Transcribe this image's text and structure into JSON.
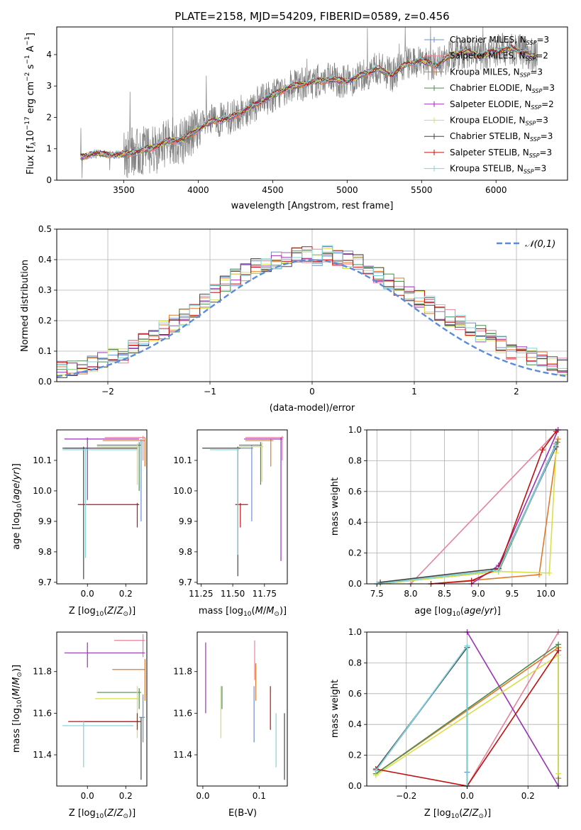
{
  "figure": {
    "suptitle": "PLATE=2158, MJD=54209, FIBERID=0589, z=0.456"
  },
  "chart_data": [
    {
      "id": "spectrum",
      "type": "line",
      "xlabel": "wavelength [Angstrom, rest frame]",
      "ylabel": "Flux [f_λ 10^-17 erg cm^-2 s^-1 A^-1]",
      "xlim": [
        3050,
        6480
      ],
      "ylim": [
        0,
        4.88
      ],
      "xticks": [
        3500,
        4000,
        4500,
        5000,
        5500,
        6000
      ],
      "yticks": [
        0,
        1,
        2,
        3,
        4
      ],
      "observed_color": "#808080",
      "model_anchors": {
        "x": [
          3210,
          3300,
          3400,
          3500,
          3600,
          3700,
          3800,
          3900,
          4000,
          4100,
          4200,
          4300,
          4400,
          4500,
          4600,
          4700,
          4800,
          4900,
          5000,
          5100,
          5200,
          5300,
          5400,
          5500,
          5600,
          5700,
          5800,
          5900,
          6000,
          6100,
          6200,
          6280
        ],
        "y": [
          0.72,
          0.85,
          0.82,
          0.82,
          0.92,
          1.05,
          1.25,
          1.3,
          1.62,
          1.9,
          1.95,
          2.2,
          2.45,
          2.7,
          2.95,
          3.05,
          3.15,
          3.2,
          3.15,
          3.35,
          3.55,
          3.35,
          3.7,
          3.8,
          3.65,
          4.0,
          4.1,
          3.95,
          4.1,
          4.2,
          4.05,
          3.9
        ]
      },
      "legend_position": "upper right",
      "legend": [
        {
          "label": "Chabrier MILES, N_SSP=3",
          "color": "#6b8fd4"
        },
        {
          "label": "Salpeter MILES, N_SSP=2",
          "color": "#e8829a"
        },
        {
          "label": "Kroupa MILES, N_SSP=3",
          "color": "#e07a2a"
        },
        {
          "label": "Chabrier ELODIE, N_SSP=3",
          "color": "#4f8a4f"
        },
        {
          "label": "Salpeter ELODIE, N_SSP=2",
          "color": "#9b30b5"
        },
        {
          "label": "Kroupa ELODIE, N_SSP=3",
          "color": "#d8e04a"
        },
        {
          "label": "Chabrier STELIB, N_SSP=3",
          "color": "#444444"
        },
        {
          "label": "Salpeter STELIB, N_SSP=3",
          "color": "#c01010"
        },
        {
          "label": "Kroupa STELIB, N_SSP=3",
          "color": "#7fd4d8"
        }
      ]
    },
    {
      "id": "residuals",
      "type": "step",
      "xlabel": "(data-model)/error",
      "ylabel": "Normed distribution",
      "xlim": [
        -2.5,
        2.5
      ],
      "ylim": [
        0,
        0.5
      ],
      "xticks": [
        -2,
        -1,
        0,
        1,
        2
      ],
      "yticks": [
        0.0,
        0.1,
        0.2,
        0.3,
        0.4,
        0.5
      ],
      "grid": true,
      "bin_width": 0.1,
      "reference": {
        "label": "𝒩(0,1)",
        "color": "#5b8bd9",
        "style": "dashed"
      },
      "envelope": [
        0.02,
        0.02,
        0.03,
        0.03,
        0.03,
        0.04,
        0.04,
        0.05,
        0.06,
        0.07,
        0.08,
        0.09,
        0.11,
        0.13,
        0.15,
        0.17,
        0.19,
        0.21,
        0.24,
        0.26,
        0.29,
        0.32,
        0.34,
        0.36,
        0.38,
        0.39,
        0.4,
        0.4,
        0.41,
        0.42,
        0.41,
        0.42,
        0.41,
        0.4,
        0.39,
        0.37,
        0.35,
        0.33,
        0.31,
        0.29,
        0.27,
        0.25,
        0.23,
        0.21,
        0.19,
        0.17,
        0.16,
        0.14,
        0.12,
        0.1,
        0.09,
        0.08,
        0.07,
        0.06,
        0.05,
        0.05,
        0.04,
        0.04,
        0.03,
        0.03
      ]
    },
    {
      "id": "age_vs_Z",
      "type": "errorbar",
      "xlabel": "Z [log10(Z/Z⊙)]",
      "ylabel": "age [log10(age/yr)]",
      "xlim": [
        -0.16,
        0.31
      ],
      "ylim": [
        9.695,
        10.2
      ],
      "xticks": [
        "0.0",
        "0.2"
      ],
      "xtick_values": [
        0,
        0.2
      ],
      "yticks": [
        "9.7",
        "9.8",
        "9.9",
        "10.0",
        "10.1"
      ],
      "ytick_values": [
        9.7,
        9.8,
        9.9,
        10.0,
        10.1
      ],
      "points": [
        {
          "c": 0,
          "x": 0.28,
          "xe": [
            -0.12,
            0.0
          ],
          "y": 10.14,
          "ye": [
            9.9,
            10.17
          ]
        },
        {
          "c": 1,
          "x": 0.29,
          "xe": [
            0.09,
            0.3
          ],
          "y": 10.175,
          "ye": [
            10.1,
            10.18
          ]
        },
        {
          "c": 2,
          "x": 0.3,
          "xe": [
            0.08,
            0.3
          ],
          "y": 10.165,
          "ye": [
            10.08,
            10.175
          ]
        },
        {
          "c": 3,
          "x": 0.27,
          "xe": [
            0.05,
            0.28
          ],
          "y": 10.15,
          "ye": [
            10.0,
            10.16
          ]
        },
        {
          "c": 4,
          "x": 0.0,
          "xe": [
            -0.12,
            0.27
          ],
          "y": 10.17,
          "ye": [
            9.97,
            10.175
          ]
        },
        {
          "c": 5,
          "x": 0.26,
          "xe": [
            0.05,
            0.27
          ],
          "y": 10.145,
          "ye": [
            10.02,
            10.155
          ]
        },
        {
          "c": 6,
          "x": -0.02,
          "xe": [
            -0.13,
            0.26
          ],
          "y": 10.14,
          "ye": [
            9.71,
            10.145
          ]
        },
        {
          "c": 7,
          "x": 0.26,
          "xe": [
            -0.05,
            0.27
          ],
          "y": 9.955,
          "ye": [
            9.88,
            9.96
          ]
        },
        {
          "c": 8,
          "x": -0.01,
          "xe": [
            -0.13,
            0.26
          ],
          "y": 10.135,
          "ye": [
            9.78,
            10.14
          ]
        }
      ]
    },
    {
      "id": "age_vs_mass",
      "type": "errorbar",
      "xlabel": "mass [log10(M/M⊙)]",
      "ylabel": "",
      "xlim": [
        11.22,
        11.93
      ],
      "ylim": [
        9.695,
        10.2
      ],
      "xticks": [
        "11.25",
        "11.50",
        "11.75"
      ],
      "xtick_values": [
        11.25,
        11.5,
        11.75
      ],
      "yticks": [
        "9.7",
        "9.8",
        "9.9",
        "10.0",
        "10.1"
      ],
      "ytick_values": [
        9.7,
        9.8,
        9.9,
        10.0,
        10.1
      ],
      "points": [
        {
          "c": 0,
          "x": 11.65,
          "xe": [
            11.55,
            11.66
          ],
          "y": 10.14,
          "ye": [
            9.9,
            10.15
          ]
        },
        {
          "c": 1,
          "x": 11.89,
          "xe": [
            11.6,
            11.9
          ],
          "y": 10.175,
          "ye": [
            10.1,
            10.18
          ]
        },
        {
          "c": 2,
          "x": 11.8,
          "xe": [
            11.6,
            11.82
          ],
          "y": 10.165,
          "ye": [
            10.08,
            10.17
          ]
        },
        {
          "c": 3,
          "x": 11.72,
          "xe": [
            11.55,
            11.73
          ],
          "y": 10.15,
          "ye": [
            10.02,
            10.16
          ]
        },
        {
          "c": 4,
          "x": 11.88,
          "xe": [
            11.59,
            11.89
          ],
          "y": 10.17,
          "ye": [
            9.77,
            10.175
          ]
        },
        {
          "c": 5,
          "x": 11.73,
          "xe": [
            11.55,
            11.74
          ],
          "y": 10.145,
          "ye": [
            10.03,
            10.16
          ]
        },
        {
          "c": 6,
          "x": 11.54,
          "xe": [
            11.26,
            11.56
          ],
          "y": 10.14,
          "ye": [
            9.72,
            10.145
          ]
        },
        {
          "c": 7,
          "x": 11.56,
          "xe": [
            11.52,
            11.62
          ],
          "y": 9.955,
          "ye": [
            9.88,
            9.96
          ]
        },
        {
          "c": 8,
          "x": 11.54,
          "xe": [
            11.32,
            11.55
          ],
          "y": 10.135,
          "ye": [
            9.79,
            10.14
          ]
        }
      ]
    },
    {
      "id": "mass_weight_vs_age",
      "type": "line",
      "xlabel": "age [log10(age/yr)]",
      "ylabel": "mass weight",
      "xlim": [
        7.35,
        10.32
      ],
      "ylim": [
        0,
        1
      ],
      "xticks": [
        "7.5",
        "8.0",
        "8.5",
        "9.0",
        "9.5",
        "10.0"
      ],
      "xtick_values": [
        7.5,
        8.0,
        8.5,
        9.0,
        9.5,
        10.0
      ],
      "yticks": [
        "0.0",
        "0.2",
        "0.4",
        "0.6",
        "0.8",
        "1.0"
      ],
      "ytick_values": [
        0,
        0.2,
        0.4,
        0.6,
        0.8,
        1.0
      ],
      "grid": true,
      "series": [
        {
          "c": 0,
          "x": [
            7.5,
            9.3,
            10.15
          ],
          "y": [
            0.0,
            0.09,
            0.91
          ]
        },
        {
          "c": 1,
          "x": [
            8.0,
            10.18
          ],
          "y": [
            0.0,
            1.0
          ]
        },
        {
          "c": 2,
          "x": [
            8.3,
            9.9,
            10.18
          ],
          "y": [
            0.0,
            0.06,
            0.94
          ]
        },
        {
          "c": 3,
          "x": [
            7.55,
            9.3,
            10.17
          ],
          "y": [
            0.0,
            0.08,
            0.92
          ]
        },
        {
          "c": 4,
          "x": [
            8.9,
            9.3,
            10.18
          ],
          "y": [
            0.0,
            0.12,
            1.0
          ]
        },
        {
          "c": 5,
          "x": [
            7.55,
            9.3,
            10.05,
            10.15
          ],
          "y": [
            0.0,
            0.08,
            0.07,
            0.85
          ]
        },
        {
          "c": 6,
          "x": [
            7.55,
            9.3,
            10.15
          ],
          "y": [
            0.01,
            0.1,
            0.89
          ]
        },
        {
          "c": 7,
          "x": [
            8.3,
            8.9,
            9.3,
            9.95,
            10.15
          ],
          "y": [
            0.0,
            0.02,
            0.1,
            0.87,
            0.99
          ]
        },
        {
          "c": 8,
          "x": [
            7.5,
            9.3,
            10.15
          ],
          "y": [
            0.0,
            0.09,
            0.9
          ]
        }
      ]
    },
    {
      "id": "mass_vs_Z",
      "type": "errorbar",
      "xlabel": "Z [log10(Z/Z⊙)]",
      "ylabel": "mass [log10(M/M⊙)]",
      "xlim": [
        -0.16,
        0.31
      ],
      "ylim": [
        11.25,
        11.99
      ],
      "xticks": [
        "0.0",
        "0.2"
      ],
      "xtick_values": [
        0,
        0.2
      ],
      "yticks": [
        "11.4",
        "11.6",
        "11.8"
      ],
      "ytick_values": [
        11.4,
        11.6,
        11.8
      ],
      "points": [
        {
          "c": 0,
          "x": 0.29,
          "xe": [
            0.27,
            0.3
          ],
          "y": 11.58,
          "ye": [
            11.46,
            11.69
          ]
        },
        {
          "c": 1,
          "x": 0.29,
          "xe": [
            0.14,
            0.3
          ],
          "y": 11.95,
          "ye": [
            11.87,
            11.98
          ]
        },
        {
          "c": 2,
          "x": 0.3,
          "xe": [
            0.13,
            0.3
          ],
          "y": 11.81,
          "ye": [
            11.66,
            11.86
          ]
        },
        {
          "c": 3,
          "x": 0.27,
          "xe": [
            0.05,
            0.28
          ],
          "y": 11.7,
          "ye": [
            11.62,
            11.72
          ]
        },
        {
          "c": 4,
          "x": 0.0,
          "xe": [
            -0.12,
            0.3
          ],
          "y": 11.89,
          "ye": [
            11.82,
            11.94
          ]
        },
        {
          "c": 5,
          "x": 0.26,
          "xe": [
            0.04,
            0.27
          ],
          "y": 11.67,
          "ye": [
            11.48,
            11.73
          ]
        },
        {
          "c": 6,
          "x": 0.28,
          "xe": [
            -0.02,
            0.28
          ],
          "y": 11.56,
          "ye": [
            11.28,
            11.58
          ]
        },
        {
          "c": 7,
          "x": 0.26,
          "xe": [
            -0.1,
            0.27
          ],
          "y": 11.56,
          "ye": [
            11.52,
            11.6
          ]
        },
        {
          "c": 8,
          "x": -0.02,
          "xe": [
            -0.13,
            0.24
          ],
          "y": 11.54,
          "ye": [
            11.34,
            11.56
          ]
        }
      ]
    },
    {
      "id": "mass_vs_ebv",
      "type": "errorbar",
      "xlabel": "E(B-V)",
      "ylabel": "",
      "xlim": [
        -0.01,
        0.15
      ],
      "ylim": [
        11.25,
        11.99
      ],
      "xticks": [
        "0.0",
        "0.1"
      ],
      "xtick_values": [
        0,
        0.1
      ],
      "yticks": [
        "11.4",
        "11.6",
        "11.8"
      ],
      "ytick_values": [
        11.4,
        11.6,
        11.8
      ],
      "points": [
        {
          "c": 0,
          "x": 0.091,
          "xe": [
            0.091,
            0.091
          ],
          "y": 11.6,
          "ye": [
            11.46,
            11.73
          ]
        },
        {
          "c": 1,
          "x": 0.092,
          "xe": [
            0.092,
            0.092
          ],
          "y": 11.9,
          "ye": [
            11.76,
            11.95
          ]
        },
        {
          "c": 2,
          "x": 0.094,
          "xe": [
            0.094,
            0.094
          ],
          "y": 11.82,
          "ye": [
            11.66,
            11.84
          ]
        },
        {
          "c": 3,
          "x": 0.034,
          "xe": [
            0.034,
            0.034
          ],
          "y": 11.7,
          "ye": [
            11.62,
            11.73
          ]
        },
        {
          "c": 4,
          "x": 0.005,
          "xe": [
            0.005,
            0.005
          ],
          "y": 11.82,
          "ye": [
            11.6,
            11.94
          ]
        },
        {
          "c": 5,
          "x": 0.032,
          "xe": [
            0.032,
            0.032
          ],
          "y": 11.68,
          "ye": [
            11.48,
            11.73
          ]
        },
        {
          "c": 6,
          "x": 0.145,
          "xe": [
            0.145,
            0.145
          ],
          "y": 11.45,
          "ye": [
            11.28,
            11.6
          ]
        },
        {
          "c": 7,
          "x": 0.12,
          "xe": [
            0.12,
            0.12
          ],
          "y": 11.62,
          "ye": [
            11.52,
            11.73
          ]
        },
        {
          "c": 8,
          "x": 0.13,
          "xe": [
            0.13,
            0.13
          ],
          "y": 11.46,
          "ye": [
            11.34,
            11.6
          ]
        }
      ]
    },
    {
      "id": "mass_weight_vs_Z",
      "type": "line",
      "xlabel": "Z [log10(Z/Z⊙)]",
      "ylabel": "mass weight",
      "xlim": [
        -0.33,
        0.33
      ],
      "ylim": [
        0,
        1
      ],
      "xticks": [
        "−0.2",
        "0.0",
        "0.2"
      ],
      "xtick_values": [
        -0.2,
        0,
        0.2
      ],
      "yticks": [
        "0.0",
        "0.2",
        "0.4",
        "0.6",
        "0.8",
        "1.0"
      ],
      "ytick_values": [
        0,
        0.2,
        0.4,
        0.6,
        0.8,
        1.0
      ],
      "grid": true,
      "series": [
        {
          "c": 0,
          "x": [
            -0.3,
            0.0,
            0.0
          ],
          "y": [
            0.1,
            0.9,
            0.09
          ]
        },
        {
          "c": 1,
          "x": [
            0.0,
            0.3
          ],
          "y": [
            0.0,
            1.0
          ]
        },
        {
          "c": 2,
          "x": [
            -0.3,
            0.3,
            0.3
          ],
          "y": [
            0.08,
            0.9,
            0.05
          ]
        },
        {
          "c": 3,
          "x": [
            -0.3,
            0.3,
            0.3
          ],
          "y": [
            0.08,
            0.92,
            0.0
          ]
        },
        {
          "c": 4,
          "x": [
            0.0,
            0.3
          ],
          "y": [
            1.0,
            0.0
          ]
        },
        {
          "c": 5,
          "x": [
            -0.3,
            0.3,
            0.3
          ],
          "y": [
            0.07,
            0.85,
            0.08
          ]
        },
        {
          "c": 6,
          "x": [
            -0.3,
            0.0,
            0.0
          ],
          "y": [
            0.11,
            0.9,
            0.0
          ]
        },
        {
          "c": 7,
          "x": [
            -0.3,
            0.0,
            0.3
          ],
          "y": [
            0.11,
            0.0,
            0.88
          ]
        },
        {
          "c": 8,
          "x": [
            -0.3,
            0.0,
            0.0
          ],
          "y": [
            0.1,
            0.91,
            0.0
          ]
        }
      ]
    }
  ]
}
